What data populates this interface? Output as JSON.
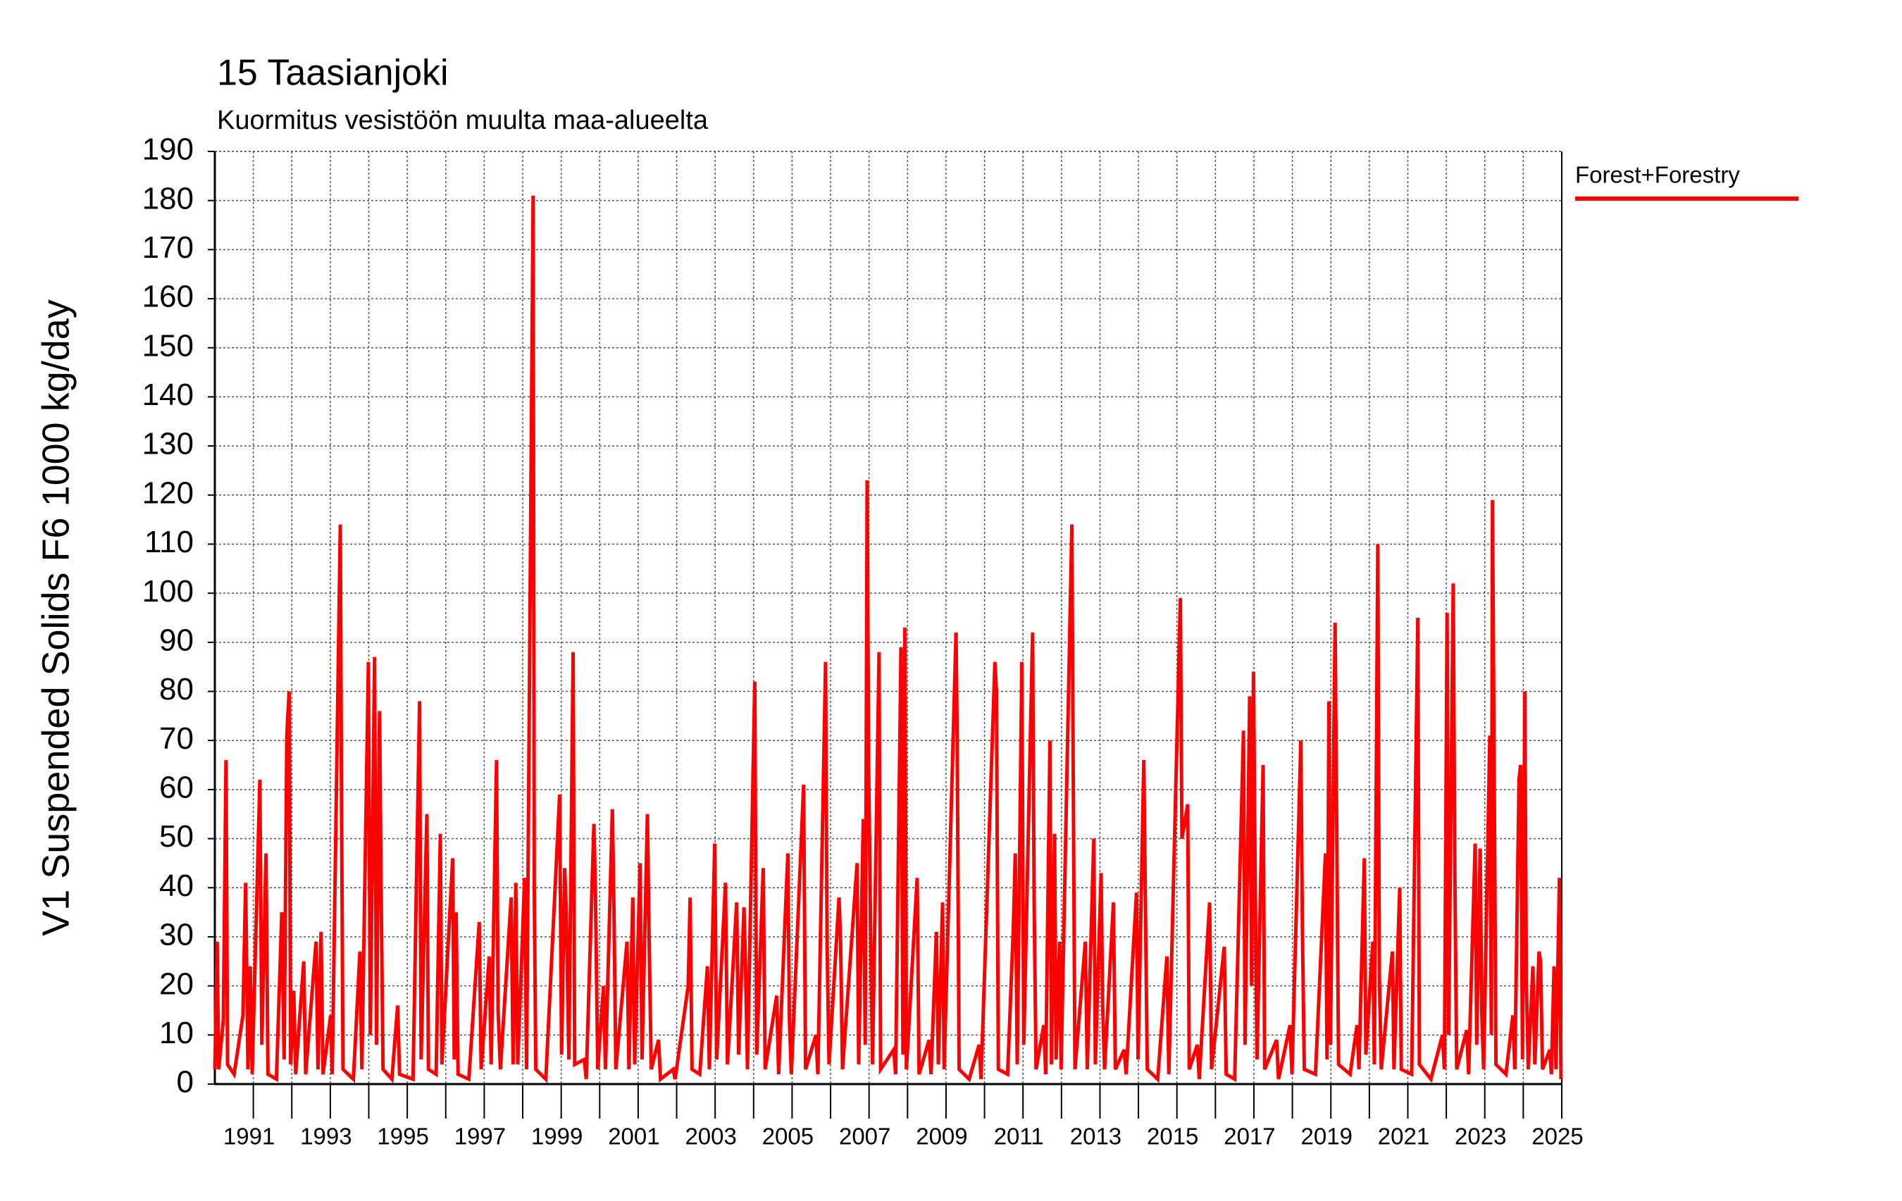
{
  "chart_data": {
    "type": "line",
    "title": "15 Taasianjoki",
    "subtitle": "Kuormitus vesistöön muulta maa-alueelta",
    "ylabel": "V1 Suspended Solids F6 1000 kg/day",
    "xlim": [
      1990,
      2025
    ],
    "xticks": [
      1991,
      1993,
      1995,
      1997,
      1999,
      2001,
      2003,
      2005,
      2007,
      2009,
      2011,
      2013,
      2015,
      2017,
      2019,
      2021,
      2023,
      2025
    ],
    "xminorticks": [
      1992,
      1994,
      1996,
      1998,
      2000,
      2002,
      2004,
      2006,
      2008,
      2010,
      2012,
      2014,
      2016,
      2018,
      2020,
      2022,
      2024
    ],
    "ylim": [
      0,
      190
    ],
    "yticks": [
      0,
      10,
      20,
      30,
      40,
      50,
      60,
      70,
      80,
      90,
      100,
      110,
      120,
      130,
      140,
      150,
      160,
      170,
      180,
      190
    ],
    "grid": true,
    "legend": "right",
    "x": [
      1990.0,
      1990.06,
      1990.1,
      1990.22,
      1990.29,
      1990.33,
      1990.5,
      1990.73,
      1990.8,
      1990.86,
      1990.92,
      1990.97,
      1991.17,
      1991.22,
      1991.33,
      1991.38,
      1991.6,
      1991.74,
      1991.8,
      1991.87,
      1991.93,
      1991.97,
      1992.05,
      1992.1,
      1992.31,
      1992.36,
      1992.63,
      1992.68,
      1992.76,
      1992.81,
      1993.01,
      1993.05,
      1993.26,
      1993.29,
      1993.33,
      1993.6,
      1993.77,
      1993.82,
      1993.99,
      1994.04,
      1994.15,
      1994.2,
      1994.28,
      1994.32,
      1994.37,
      1994.6,
      1994.75,
      1994.8,
      1995.15,
      1995.32,
      1995.36,
      1995.51,
      1995.55,
      1995.75,
      1995.86,
      1995.9,
      1996.18,
      1996.22,
      1996.27,
      1996.32,
      1996.6,
      1996.87,
      1996.92,
      1997.13,
      1997.18,
      1997.32,
      1997.36,
      1997.42,
      1997.7,
      1997.75,
      1997.82,
      1997.87,
      1998.05,
      1998.1,
      1998.27,
      1998.3,
      1998.34,
      1998.6,
      1998.96,
      1999.01,
      1999.09,
      1999.13,
      1999.2,
      1999.31,
      1999.35,
      1999.6,
      1999.65,
      1999.85,
      1999.89,
      1999.95,
      2000.1,
      2000.15,
      2000.33,
      2000.37,
      2000.42,
      2000.71,
      2000.76,
      2000.86,
      2000.91,
      2001.05,
      2001.1,
      2001.24,
      2001.28,
      2001.34,
      2001.53,
      2001.58,
      2001.91,
      2001.96,
      2002.3,
      2002.35,
      2002.4,
      2002.6,
      2002.8,
      2002.85,
      2002.99,
      2003.04,
      2003.27,
      2003.32,
      2003.56,
      2003.61,
      2003.75,
      2003.79,
      2003.84,
      2004.03,
      2004.08,
      2004.25,
      2004.3,
      2004.6,
      2004.65,
      2004.89,
      2004.93,
      2004.98,
      2005.3,
      2005.35,
      2005.62,
      2005.67,
      2005.87,
      2005.91,
      2005.96,
      2006.22,
      2006.26,
      2006.31,
      2006.69,
      2006.73,
      2006.85,
      2006.9,
      2006.95,
      2006.99,
      2007.04,
      2007.09,
      2007.26,
      2007.3,
      2007.64,
      2007.69,
      2007.83,
      2007.88,
      2007.93,
      2007.97,
      2008.25,
      2008.3,
      2008.56,
      2008.61,
      2008.75,
      2008.8,
      2008.91,
      2008.95,
      2009.26,
      2009.29,
      2009.34,
      2009.6,
      2009.86,
      2009.91,
      2010.27,
      2010.31,
      2010.36,
      2010.6,
      2010.75,
      2010.8,
      2010.85,
      2010.97,
      2011.02,
      2011.25,
      2011.29,
      2011.34,
      2011.54,
      2011.59,
      2011.7,
      2011.74,
      2011.82,
      2011.86,
      2011.95,
      2011.99,
      2012.27,
      2012.3,
      2012.35,
      2012.62,
      2012.67,
      2012.84,
      2012.88,
      2013.03,
      2013.07,
      2013.12,
      2013.35,
      2013.4,
      2013.63,
      2013.68,
      2013.95,
      2013.99,
      2014.14,
      2014.18,
      2014.23,
      2014.5,
      2014.74,
      2014.79,
      2015.09,
      2015.13,
      2015.28,
      2015.32,
      2015.53,
      2015.58,
      2015.85,
      2015.9,
      2016.23,
      2016.28,
      2016.5,
      2016.73,
      2016.77,
      2016.89,
      2016.94,
      2016.99,
      2017.03,
      2017.08,
      2017.24,
      2017.28,
      2017.59,
      2017.64,
      2017.94,
      2017.99,
      2018.22,
      2018.26,
      2018.31,
      2018.6,
      2018.86,
      2018.9,
      2018.95,
      2018.99,
      2019.11,
      2019.15,
      2019.2,
      2019.5,
      2019.68,
      2019.73,
      2019.87,
      2019.91,
      2020.09,
      2020.13,
      2020.22,
      2020.26,
      2020.31,
      2020.6,
      2020.64,
      2020.79,
      2020.83,
      2021.1,
      2021.26,
      2021.3,
      2021.6,
      2021.9,
      2021.95,
      2022.02,
      2022.06,
      2022.18,
      2022.22,
      2022.27,
      2022.53,
      2022.58,
      2022.75,
      2022.79,
      2022.88,
      2022.92,
      2022.97,
      2023.13,
      2023.17,
      2023.2,
      2023.24,
      2023.29,
      2023.55,
      2023.73,
      2023.78,
      2023.89,
      2023.93,
      2023.98,
      2024.04,
      2024.08,
      2024.13,
      2024.25,
      2024.3,
      2024.41,
      2024.45,
      2024.5,
      2024.69,
      2024.73,
      2024.8,
      2024.85,
      2024.94,
      2024.98
    ],
    "series": [
      {
        "name": "Forest+Forestry",
        "color": "#ff0000",
        "values": [
          3,
          29,
          3,
          13,
          66,
          4,
          2,
          14,
          41,
          3,
          24,
          2,
          62,
          8,
          47,
          2,
          1,
          35,
          5,
          71,
          80,
          4,
          19,
          2,
          25,
          2,
          29,
          3,
          31,
          2,
          14,
          2,
          114,
          60,
          3,
          1,
          27,
          3,
          86,
          10,
          87,
          8,
          76,
          40,
          3,
          1,
          16,
          2,
          1,
          78,
          5,
          55,
          3,
          2,
          51,
          4,
          46,
          5,
          35,
          2,
          1,
          33,
          3,
          26,
          4,
          66,
          15,
          3,
          38,
          4,
          41,
          4,
          42,
          3,
          181,
          40,
          3,
          1,
          59,
          6,
          44,
          36,
          5,
          88,
          4,
          5,
          1,
          53,
          39,
          3,
          20,
          3,
          56,
          36,
          3,
          29,
          3,
          38,
          4,
          45,
          5,
          55,
          32,
          3,
          9,
          1,
          3,
          1,
          20,
          38,
          3,
          2,
          24,
          3,
          49,
          5,
          41,
          4,
          37,
          6,
          36,
          24,
          3,
          82,
          6,
          44,
          3,
          18,
          2,
          47,
          13,
          2,
          61,
          3,
          10,
          2,
          86,
          28,
          4,
          38,
          29,
          3,
          45,
          4,
          54,
          8,
          123,
          64,
          31,
          4,
          88,
          3,
          7,
          2,
          89,
          6,
          93,
          3,
          42,
          2,
          9,
          2,
          31,
          4,
          37,
          3,
          92,
          70,
          3,
          1,
          8,
          1,
          86,
          80,
          3,
          2,
          32,
          47,
          4,
          86,
          8,
          92,
          37,
          3,
          12,
          2,
          70,
          4,
          51,
          5,
          29,
          3,
          114,
          70,
          3,
          29,
          3,
          50,
          4,
          43,
          16,
          3,
          37,
          3,
          7,
          2,
          39,
          5,
          66,
          37,
          3,
          1,
          26,
          2,
          99,
          50,
          57,
          3,
          8,
          1,
          37,
          3,
          28,
          2,
          1,
          72,
          8,
          79,
          20,
          84,
          45,
          5,
          65,
          3,
          9,
          1,
          12,
          2,
          70,
          32,
          3,
          2,
          47,
          5,
          78,
          8,
          94,
          55,
          4,
          2,
          12,
          3,
          46,
          6,
          29,
          4,
          110,
          22,
          3,
          27,
          3,
          40,
          3,
          2,
          95,
          4,
          1,
          10,
          3,
          96,
          10,
          102,
          45,
          3,
          11,
          2,
          49,
          8,
          48,
          15,
          3,
          71,
          10,
          119,
          69,
          4,
          2,
          14,
          3,
          62,
          65,
          5,
          80,
          21,
          3,
          24,
          4,
          27,
          25,
          3,
          7,
          2,
          24,
          3,
          42,
          1
        ]
      }
    ]
  }
}
